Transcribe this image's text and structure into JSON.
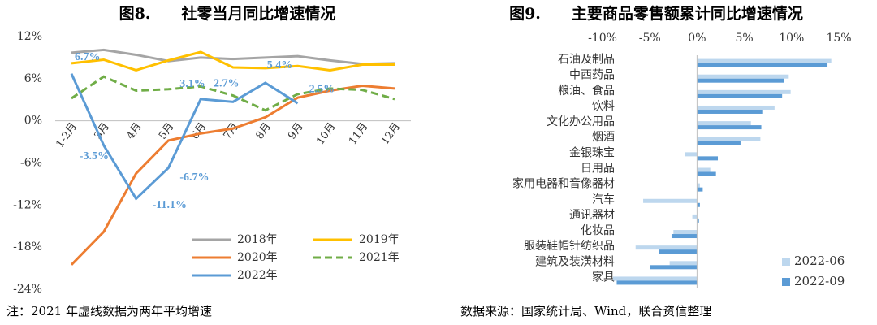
{
  "chart_data": [
    {
      "type": "line",
      "title": "图8.　　社零当月同比增速情况",
      "categories": [
        "1-2月",
        "3月",
        "4月",
        "5月",
        "6月",
        "7月",
        "8月",
        "9月",
        "10月",
        "11月",
        "12月"
      ],
      "ylim": [
        -24,
        12
      ],
      "yticks": [
        {
          "value": 12,
          "label": "12%"
        },
        {
          "value": 6,
          "label": "6%"
        },
        {
          "value": 0,
          "label": "0%"
        },
        {
          "value": -6,
          "label": "-6%"
        },
        {
          "value": -12,
          "label": "-12%"
        },
        {
          "value": -18,
          "label": "-18%"
        },
        {
          "value": -24,
          "label": "-24%"
        }
      ],
      "series": [
        {
          "name": "2018年",
          "color": "#a5a5a5",
          "values": [
            9.7,
            10.1,
            9.4,
            8.5,
            9.0,
            8.8,
            9.0,
            9.2,
            8.6,
            8.1,
            8.2
          ]
        },
        {
          "name": "2019年",
          "color": "#ffc000",
          "values": [
            8.2,
            8.7,
            7.2,
            8.6,
            9.8,
            7.6,
            7.5,
            7.8,
            7.2,
            8.0,
            8.0
          ]
        },
        {
          "name": "2020年",
          "color": "#ed7d31",
          "values": [
            -20.5,
            -15.8,
            -7.5,
            -2.8,
            -1.8,
            -1.1,
            0.5,
            3.3,
            4.3,
            5.0,
            4.6
          ]
        },
        {
          "name": "2021年",
          "color": "#70ad47",
          "dashed": true,
          "values": [
            3.2,
            6.3,
            4.3,
            4.5,
            4.9,
            3.6,
            1.5,
            3.8,
            4.6,
            4.4,
            3.1
          ]
        },
        {
          "name": "2022年",
          "color": "#5b9bd5",
          "values": [
            6.7,
            -3.5,
            -11.1,
            -6.7,
            3.1,
            2.7,
            5.4,
            2.5,
            null,
            null,
            null
          ],
          "value_labels": [
            "6.7%",
            "-3.5%",
            "-11.1%",
            "-6.7%",
            "3.1%",
            "2.7%",
            "5.4%",
            "2.5%",
            null,
            null,
            null
          ]
        }
      ],
      "note": "注：2021 年虚线数据为两年平均增速"
    },
    {
      "type": "bar",
      "orientation": "horizontal",
      "title": "图9.　　主要商品零售额累计同比增速情况",
      "categories": [
        "石油及制品",
        "中西药品",
        "粮油、食品",
        "饮料",
        "文化办公用品",
        "烟酒",
        "金银珠宝",
        "日用品",
        "家用电器和音像器材",
        "汽车",
        "通讯器材",
        "化妆品",
        "服装鞋帽针纺织品",
        "建筑及装潢材料",
        "家具"
      ],
      "xlim": [
        -10,
        15
      ],
      "xticks": [
        {
          "value": -10,
          "label": "-10%"
        },
        {
          "value": -5,
          "label": "-5%"
        },
        {
          "value": 0,
          "label": "0%"
        },
        {
          "value": 5,
          "label": "5%"
        },
        {
          "value": 10,
          "label": "10%"
        },
        {
          "value": 15,
          "label": "15%"
        }
      ],
      "series": [
        {
          "name": "2022-06",
          "color": "#bdd7ee",
          "values": [
            14.2,
            9.7,
            9.9,
            8.2,
            5.7,
            6.7,
            -1.3,
            1.4,
            0.3,
            -5.7,
            -0.5,
            -2.5,
            -6.5,
            -2.9,
            -8.9
          ]
        },
        {
          "name": "2022-09",
          "color": "#5b9bd5",
          "values": [
            13.8,
            9.2,
            9.0,
            6.9,
            6.8,
            4.6,
            2.2,
            2.0,
            0.6,
            0.3,
            0.2,
            -2.7,
            -4.0,
            -5.0,
            -8.5
          ]
        }
      ],
      "note": "数据来源：国家统计局、Wind，联合资信整理"
    }
  ]
}
